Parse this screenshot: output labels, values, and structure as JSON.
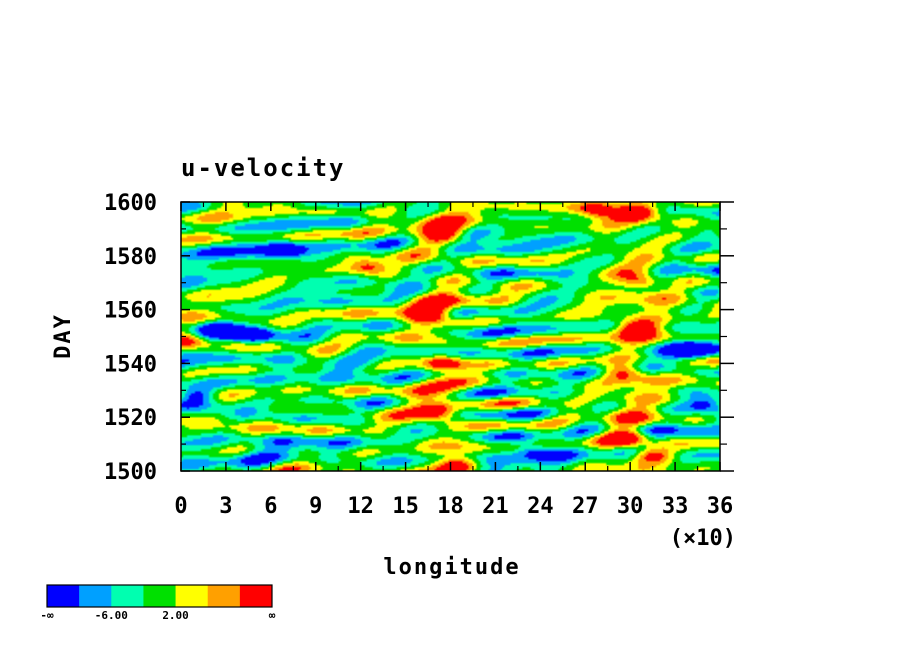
{
  "chart_data": {
    "type": "heatmap",
    "title": "u-velocity",
    "xlabel": "longitude",
    "ylabel": "DAY",
    "x_multiplier_label": "(×10)",
    "xlim": [
      0,
      36
    ],
    "ylim": [
      1500,
      1600
    ],
    "x_ticks": [
      "0",
      "3",
      "6",
      "9",
      "12",
      "15",
      "18",
      "21",
      "24",
      "27",
      "30",
      "33",
      "36"
    ],
    "y_ticks": [
      "1500",
      "1520",
      "1540",
      "1560",
      "1580",
      "1600"
    ],
    "colorbar": {
      "colors": [
        "#0000ff",
        "#00a0ff",
        "#00ffb0",
        "#00e000",
        "#ffff00",
        "#ffa000",
        "#ff0000"
      ],
      "labels": [
        "-∞",
        "-6.00",
        "2.00",
        "∞"
      ]
    },
    "hotspots": [
      {
        "lon": 16.5,
        "day": 1558,
        "level": 6
      },
      {
        "lon": 17.0,
        "day": 1522,
        "level": 6
      },
      {
        "lon": 17.5,
        "day": 1540,
        "level": 6
      },
      {
        "lon": 18.5,
        "day": 1502,
        "level": 6
      },
      {
        "lon": 17.5,
        "day": 1588,
        "level": 6
      },
      {
        "lon": 30.5,
        "day": 1553,
        "level": 6
      },
      {
        "lon": 29.5,
        "day": 1537,
        "level": 6
      },
      {
        "lon": 29.8,
        "day": 1512,
        "level": 6
      },
      {
        "lon": 31.5,
        "day": 1506,
        "level": 6
      },
      {
        "lon": 30.5,
        "day": 1596,
        "level": 6
      },
      {
        "lon": 27.8,
        "day": 1597,
        "level": 6
      },
      {
        "lon": 30.8,
        "day": 1570,
        "level": 6
      },
      {
        "lon": 12.5,
        "day": 1576,
        "level": 6
      },
      {
        "lon": 0.5,
        "day": 1548,
        "level": 6
      }
    ],
    "coldspots": [
      {
        "lon": 2.5,
        "day": 1553,
        "level": 0
      },
      {
        "lon": 5.0,
        "day": 1550,
        "level": 0
      },
      {
        "lon": 1.0,
        "day": 1528,
        "level": 0
      },
      {
        "lon": 34.0,
        "day": 1545,
        "level": 0
      },
      {
        "lon": 35.0,
        "day": 1525,
        "level": 0
      },
      {
        "lon": 7.0,
        "day": 1582,
        "level": 0
      },
      {
        "lon": 23.5,
        "day": 1508,
        "level": 0
      }
    ]
  }
}
